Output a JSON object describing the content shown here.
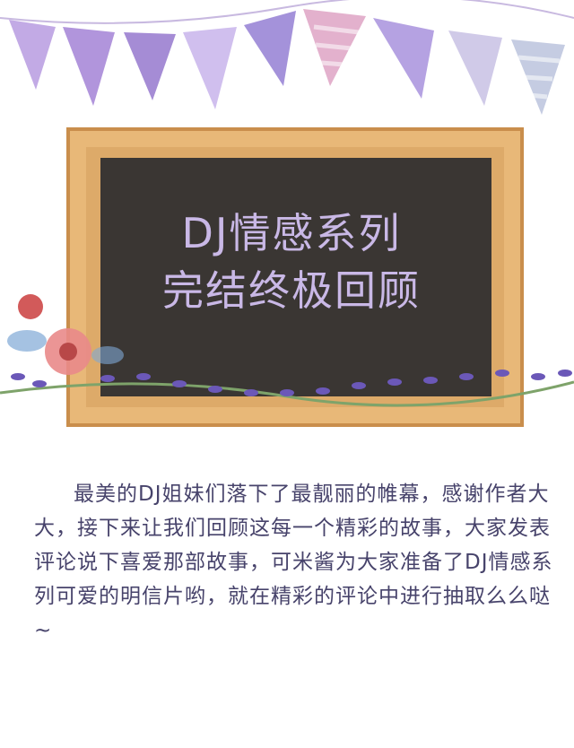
{
  "board": {
    "title_line1": "DJ情感系列",
    "title_line2": "完结终极回顾"
  },
  "body": {
    "paragraph": "最美的DJ姐妹们落下了最靓丽的帷幕，感谢作者大大，接下来让我们回顾这每一个精彩的故事，大家发表评论说下喜爱那部故事，可米酱为大家准备了DJ情感系列可爱的明信片哟，就在精彩的评论中进行抽取么么哒~"
  },
  "colors": {
    "board": "#3a3633",
    "frame": "#e8b878",
    "title": "#c9b8e6",
    "text": "#47436b",
    "flag_purple": "#b79be0",
    "flag_lilac": "#d8c8ef",
    "lavender": "#6b58b8"
  }
}
